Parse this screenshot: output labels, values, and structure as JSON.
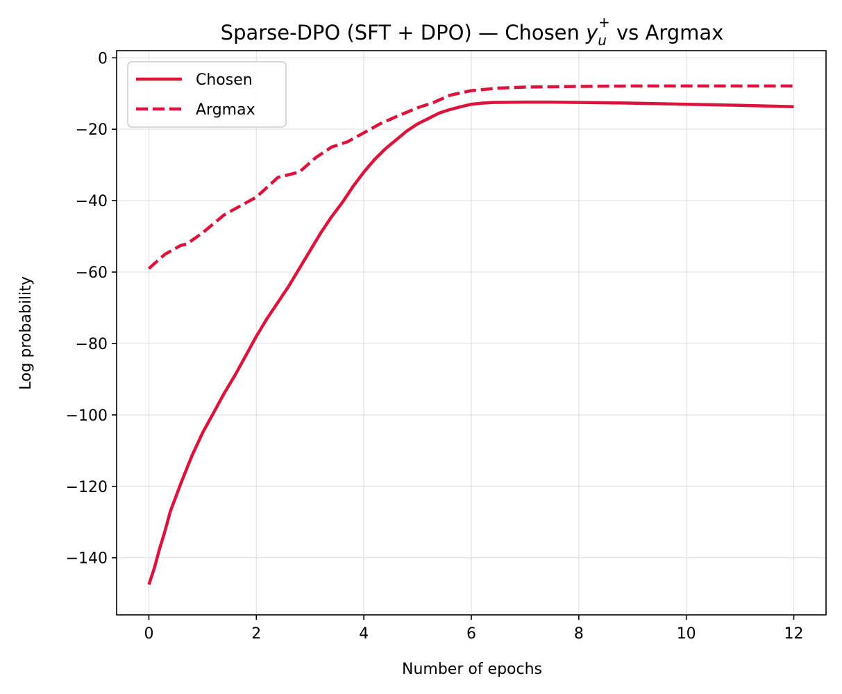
{
  "chart_data": {
    "type": "line",
    "title": {
      "prefix": "Sparse-DPO (SFT + DPO) — Chosen ",
      "math_base": "y",
      "math_sub": "u",
      "math_sup": "+",
      "suffix": " vs Argmax"
    },
    "xlabel": "Number of epochs",
    "ylabel": "Log probability",
    "xlim": [
      -0.6,
      12.6
    ],
    "ylim": [
      -156,
      2
    ],
    "xticks": [
      0,
      2,
      4,
      6,
      8,
      10,
      12
    ],
    "yticks": [
      0,
      -20,
      -40,
      -60,
      -80,
      -100,
      -120,
      -140
    ],
    "xtick_labels": [
      "0",
      "2",
      "4",
      "6",
      "8",
      "10",
      "12"
    ],
    "ytick_labels": [
      "0",
      "−20",
      "−40",
      "−60",
      "−80",
      "−100",
      "−120",
      "−140"
    ],
    "grid": true,
    "legend_position": "top-left",
    "series": [
      {
        "name": "Chosen",
        "color": "#dc143c",
        "style": "solid",
        "x": [
          0,
          0.1,
          0.2,
          0.3,
          0.4,
          0.5,
          0.6,
          0.8,
          1.0,
          1.2,
          1.4,
          1.6,
          1.8,
          2.0,
          2.2,
          2.4,
          2.6,
          2.8,
          3.0,
          3.2,
          3.4,
          3.6,
          3.8,
          4.0,
          4.2,
          4.4,
          4.6,
          4.8,
          5.0,
          5.2,
          5.4,
          5.6,
          5.8,
          6.0,
          6.2,
          6.4,
          7.0,
          7.5,
          8.0,
          9.0,
          10.0,
          11.0,
          12.0
        ],
        "y": [
          -147.5,
          -143,
          -137.5,
          -132.5,
          -127,
          -123,
          -119,
          -111.5,
          -105,
          -99.5,
          -94,
          -89,
          -83.5,
          -78,
          -73,
          -68.5,
          -64,
          -59,
          -54,
          -49,
          -44.5,
          -40.5,
          -36,
          -32,
          -28.5,
          -25.5,
          -23,
          -20.5,
          -18.5,
          -17,
          -15.5,
          -14.5,
          -13.7,
          -13,
          -12.7,
          -12.5,
          -12.4,
          -12.4,
          -12.5,
          -12.7,
          -13,
          -13.3,
          -13.7
        ]
      },
      {
        "name": "Argmax",
        "color": "#dc143c",
        "style": "dashed",
        "x": [
          0,
          0.3,
          0.6,
          0.7,
          1.0,
          1.4,
          1.7,
          2.0,
          2.4,
          2.8,
          3.1,
          3.4,
          3.7,
          4.0,
          4.3,
          4.6,
          5.0,
          5.3,
          5.6,
          6.0,
          6.5,
          7.0,
          8.0,
          9.0,
          10.0,
          11.0,
          12.0
        ],
        "y": [
          -59,
          -55,
          -52.5,
          -52.2,
          -49,
          -44,
          -41.5,
          -39,
          -33.5,
          -32,
          -28,
          -25,
          -23.5,
          -21,
          -18.5,
          -16.5,
          -14,
          -12.5,
          -10.5,
          -9.2,
          -8.5,
          -8.2,
          -8,
          -7.9,
          -7.9,
          -7.9,
          -7.9
        ]
      }
    ]
  }
}
